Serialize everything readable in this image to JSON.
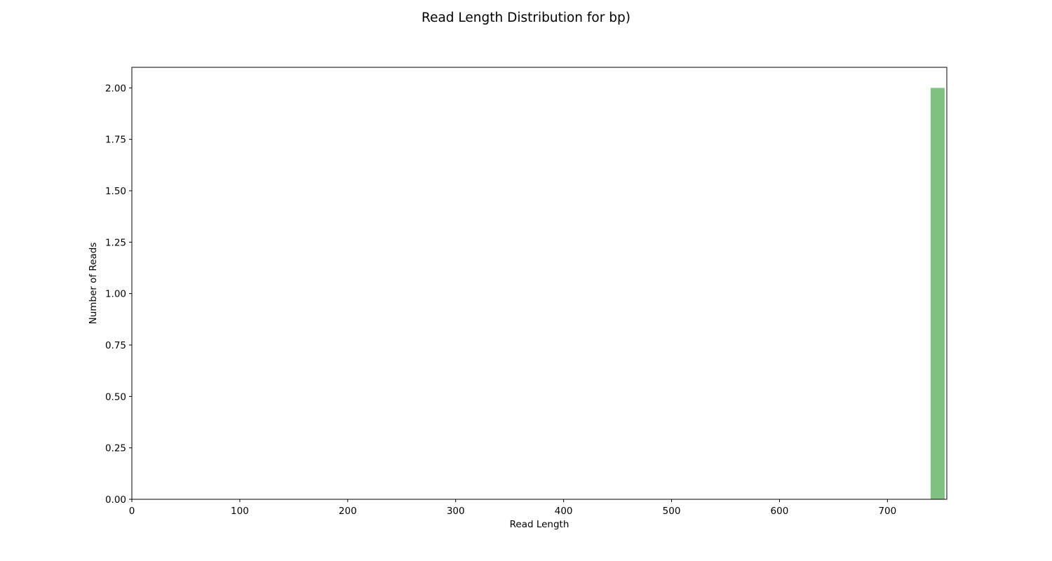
{
  "chart_data": {
    "type": "bar",
    "title": "Read Length Distribution for bp)",
    "xlabel": "Read Length",
    "ylabel": "Number of Reads",
    "xlim": [
      0,
      755
    ],
    "ylim": [
      0,
      2.1
    ],
    "xticks": [
      0,
      100,
      200,
      300,
      400,
      500,
      600,
      700
    ],
    "xtick_labels": [
      "0",
      "100",
      "200",
      "300",
      "400",
      "500",
      "600",
      "700"
    ],
    "yticks": [
      0,
      0.25,
      0.5,
      0.75,
      1.0,
      1.25,
      1.5,
      1.75,
      2.0
    ],
    "ytick_labels": [
      "0.00",
      "0.25",
      "0.50",
      "0.75",
      "1.00",
      "1.25",
      "1.50",
      "1.75",
      "2.00"
    ],
    "bins": [
      {
        "x_start": 740,
        "x_end": 753,
        "count": 2
      }
    ],
    "bar_color": "#80c080",
    "grid": false,
    "legend": "none"
  }
}
